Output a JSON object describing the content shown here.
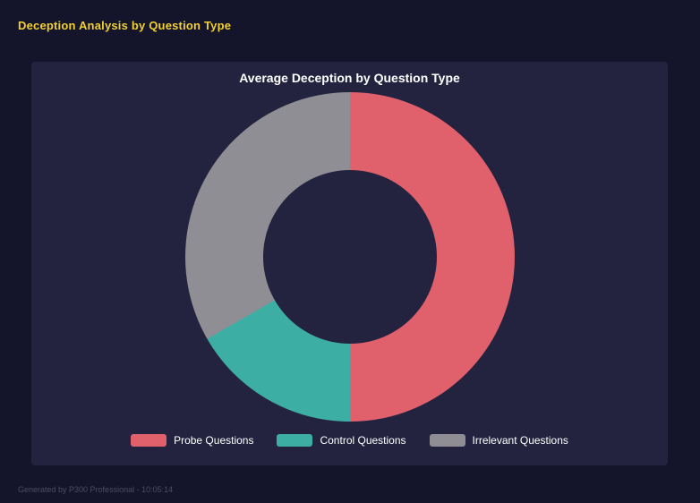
{
  "header": {
    "title": "Deception Analysis by Question Type"
  },
  "chart_data": {
    "type": "pie",
    "variant": "donut",
    "title": "Average Deception by Question Type",
    "labels": [
      "Probe Questions",
      "Control Questions",
      "Irrelevant Questions"
    ],
    "values": [
      50,
      16.7,
      33.3
    ],
    "unit": "percent",
    "colors": [
      "#e0606b",
      "#3caea3",
      "#8e8e94"
    ],
    "legend_position": "bottom",
    "start_angle_deg": 0,
    "direction": "clockwise",
    "inner_radius_ratio": 0.53,
    "background": "#232340"
  },
  "footer": {
    "text": "Generated by P300 Professional - 10:05:14"
  }
}
